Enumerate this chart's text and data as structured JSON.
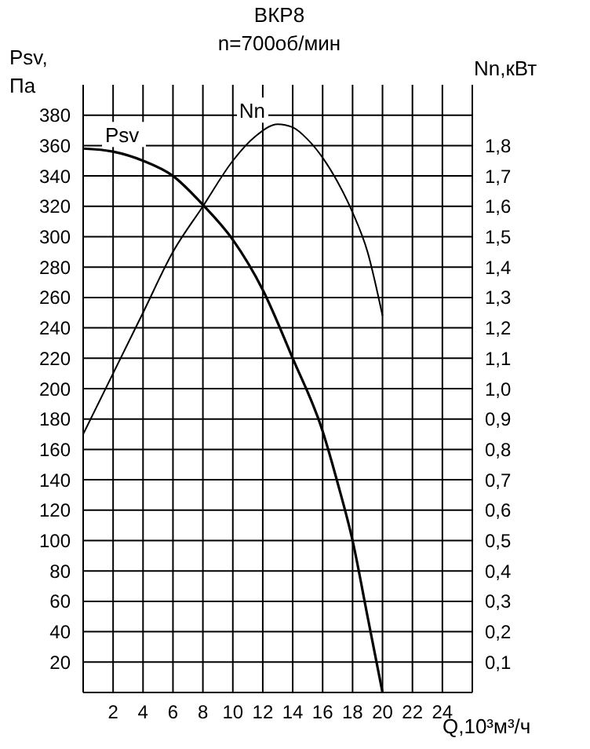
{
  "chart_data": {
    "type": "line",
    "title": "ВКР8",
    "subtitle": "n=700об/мин",
    "xlabel": "Q,10³м³/ч",
    "ylabel": "Psv, Па",
    "y2label": "Nn,кВт",
    "xlim": [
      0,
      26
    ],
    "xticks": [
      2,
      4,
      6,
      8,
      10,
      12,
      14,
      16,
      18,
      20,
      22,
      24
    ],
    "ylim": [
      0,
      400
    ],
    "yticks": [
      20,
      40,
      60,
      80,
      100,
      120,
      140,
      160,
      180,
      200,
      220,
      240,
      260,
      280,
      300,
      320,
      340,
      360,
      380
    ],
    "y2lim": [
      0,
      2
    ],
    "y2ticks": [
      {
        "value": 0.1,
        "label": "0,1"
      },
      {
        "value": 0.2,
        "label": "0,2"
      },
      {
        "value": 0.3,
        "label": "0,3"
      },
      {
        "value": 0.4,
        "label": "0,4"
      },
      {
        "value": 0.5,
        "label": "0,5"
      },
      {
        "value": 0.6,
        "label": "0,6"
      },
      {
        "value": 0.7,
        "label": "0,7"
      },
      {
        "value": 0.8,
        "label": "0,8"
      },
      {
        "value": 0.9,
        "label": "0,9"
      },
      {
        "value": 1.0,
        "label": "1,0"
      },
      {
        "value": 1.1,
        "label": "1,1"
      },
      {
        "value": 1.2,
        "label": "1,2"
      },
      {
        "value": 1.3,
        "label": "1,3"
      },
      {
        "value": 1.4,
        "label": "1,4"
      },
      {
        "value": 1.5,
        "label": "1,5"
      },
      {
        "value": 1.6,
        "label": "1,6"
      },
      {
        "value": 1.7,
        "label": "1,7"
      },
      {
        "value": 1.8,
        "label": "1,8"
      }
    ],
    "grid": true,
    "marker": "none",
    "line_style": "solid",
    "series": [
      {
        "name": "Psv",
        "color": "#000000",
        "x": [
          0,
          2,
          4,
          6,
          8,
          10,
          12,
          14,
          16,
          17,
          18,
          19,
          20
        ],
        "values": [
          358,
          356,
          350,
          340,
          321,
          298,
          265,
          220,
          172,
          138,
          100,
          50,
          0
        ]
      },
      {
        "name": "Nn",
        "color": "#000000",
        "axis": "y2",
        "x": [
          0,
          2,
          4,
          6,
          8,
          10,
          11.5,
          13,
          14,
          15,
          16,
          17,
          18,
          19,
          20
        ],
        "values": [
          0.85,
          1.05,
          1.25,
          1.45,
          1.6,
          1.75,
          1.83,
          1.87,
          1.86,
          1.82,
          1.76,
          1.68,
          1.58,
          1.45,
          1.24
        ]
      }
    ]
  }
}
